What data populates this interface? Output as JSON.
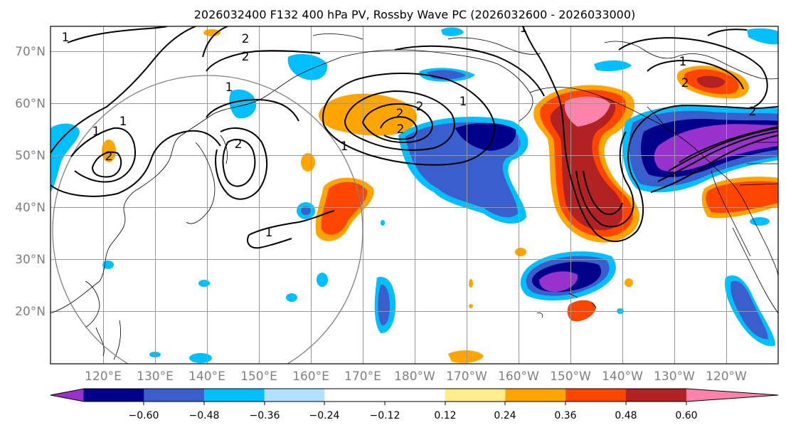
{
  "title": "2026032400 F132 400 hPa PV, Rossby Wave PC (2026032600 - 2026033000)",
  "lat_labels": [
    "70°N",
    "60°N",
    "50°N",
    "40°N",
    "30°N",
    "20°N"
  ],
  "lon_labels": [
    "120°E",
    "130°E",
    "140°E",
    "150°E",
    "160°E",
    "170°E",
    "180°W",
    "170°W",
    "160°W",
    "150°W",
    "140°W",
    "130°W",
    "120°W"
  ],
  "colorbar": {
    "colors": [
      "#9932cc",
      "#00008b",
      "#3a5fcd",
      "#00bfff",
      "#b0e2ff",
      "#ffffff",
      "#ffec8b",
      "#ffa500",
      "#ff4500",
      "#b22222",
      "#ff82ab"
    ],
    "tick_labels": [
      "−0.60",
      "−0.48",
      "−0.36",
      "−0.24",
      "−0.12",
      "0.12",
      "0.24",
      "0.36",
      "0.48",
      "0.60"
    ]
  },
  "contour_labels": [
    "1",
    "1",
    "1",
    "1",
    "1",
    "1",
    "1",
    "1",
    "1",
    "2",
    "2",
    "2",
    "2",
    "2",
    "2",
    "2",
    "2",
    "2"
  ]
}
